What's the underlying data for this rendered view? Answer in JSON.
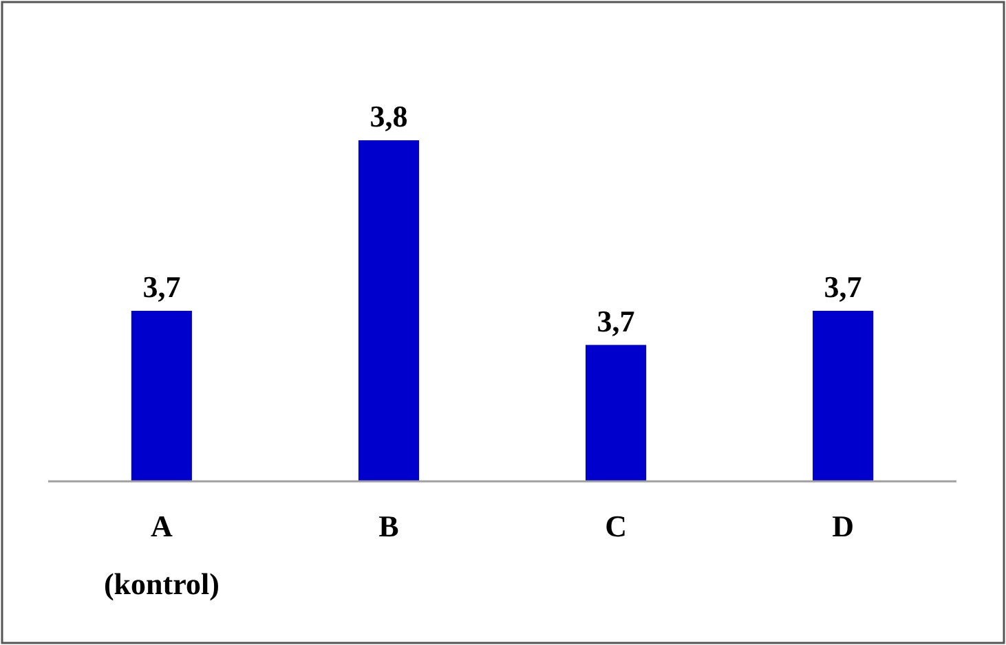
{
  "chart_data": {
    "type": "bar",
    "categories": [
      "A\n(kontrol)",
      "B",
      "C",
      "D"
    ],
    "values": [
      3.7,
      3.8,
      3.68,
      3.7
    ],
    "value_labels": [
      "3,7",
      "3,8",
      "3,7",
      "3,7"
    ],
    "ylim": [
      3.6,
      3.8
    ],
    "color": "#0000cc"
  }
}
